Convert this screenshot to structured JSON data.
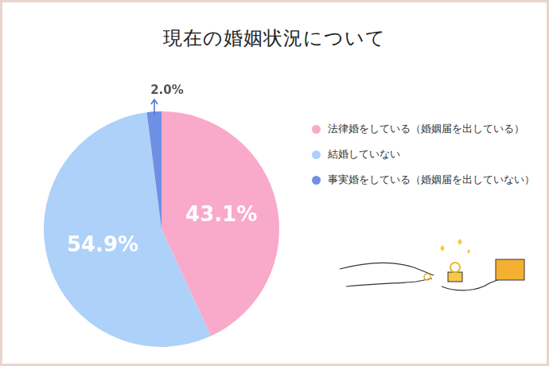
{
  "chart_data": {
    "type": "pie",
    "title": "現在の婚姻状況について",
    "categories": [
      "法律婚をしている（婚姻届を出している）",
      "結婚していない",
      "事実婚をしている（婚姻届を出していない）"
    ],
    "values": [
      43.1,
      54.9,
      2.0
    ],
    "value_labels": [
      "43.1%",
      "54.9%",
      "2.0%"
    ],
    "colors": [
      "#f9a9c9",
      "#aed1f9",
      "#6e8fe3"
    ],
    "data_labels": true,
    "legend": "right"
  }
}
